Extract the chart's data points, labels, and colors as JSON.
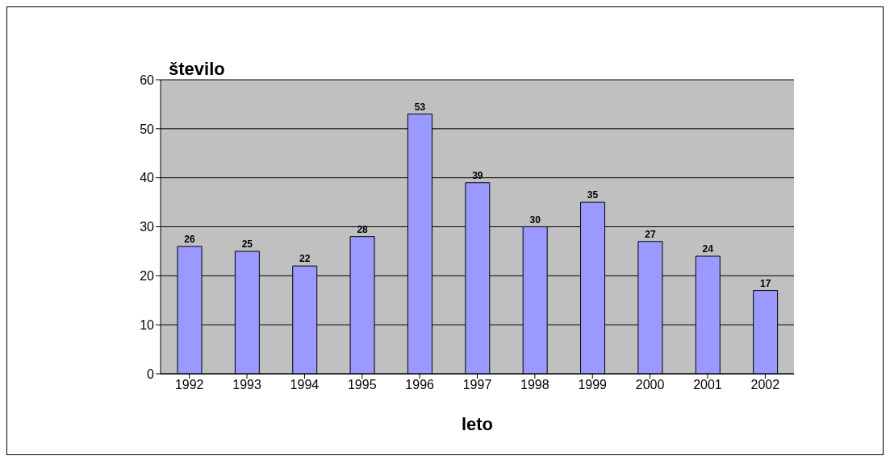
{
  "chart_data": {
    "type": "bar",
    "xlabel": "leto",
    "ylabel": "število",
    "categories": [
      "1992",
      "1993",
      "1994",
      "1995",
      "1996",
      "1997",
      "1998",
      "1999",
      "2000",
      "2001",
      "2002"
    ],
    "values": [
      26,
      25,
      22,
      28,
      53,
      39,
      30,
      35,
      27,
      24,
      17
    ],
    "color": "#9999ff",
    "ylim": [
      0,
      60
    ],
    "yticks": [
      0,
      10,
      20,
      30,
      40,
      50,
      60
    ],
    "grid": "y",
    "data_labels": true
  }
}
